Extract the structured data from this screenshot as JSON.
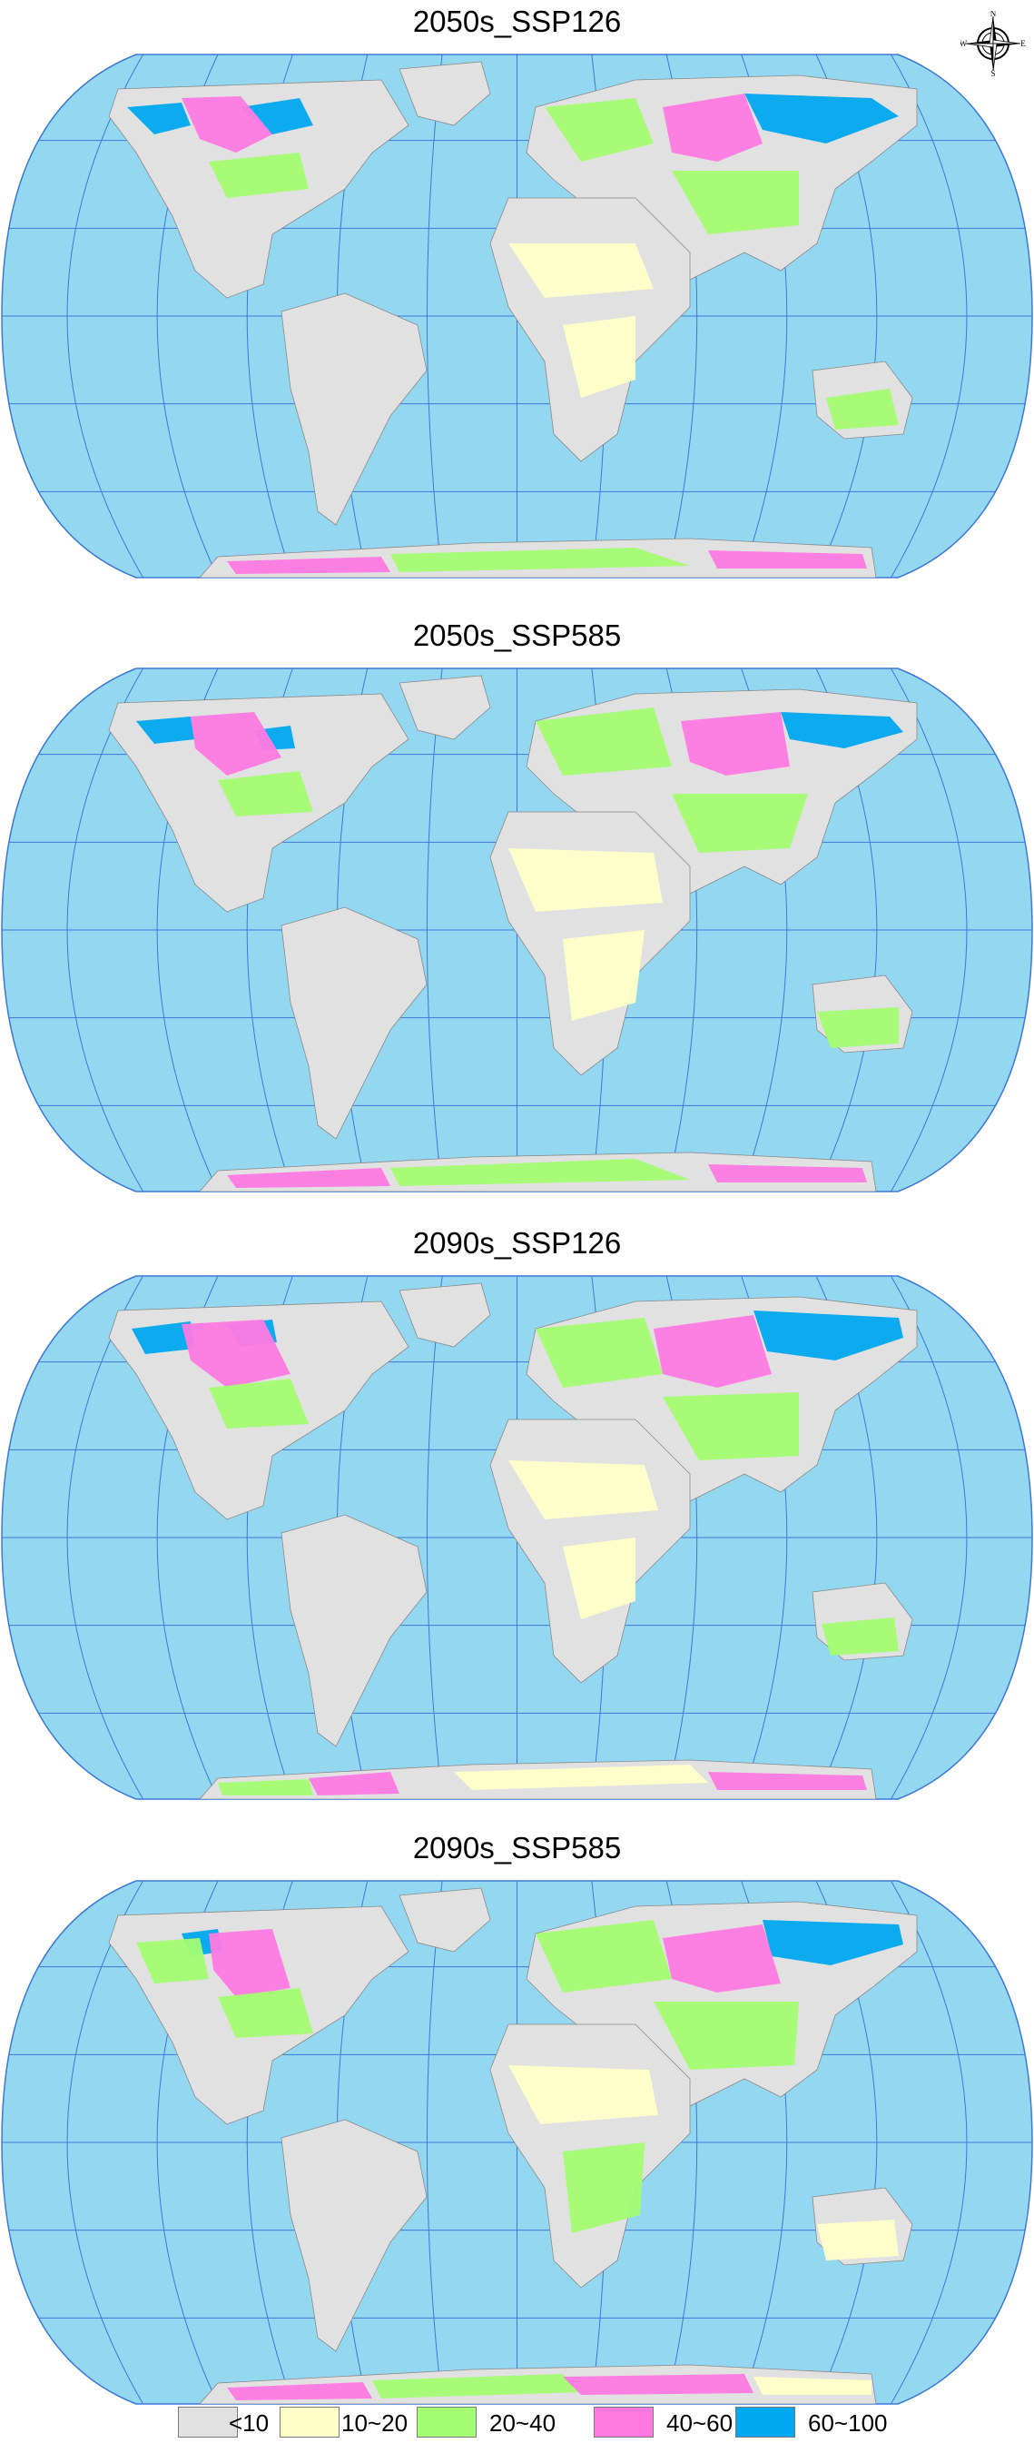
{
  "panels": [
    {
      "title": "2050s_SSP126"
    },
    {
      "title": "2050s_SSP585"
    },
    {
      "title": "2090s_SSP126"
    },
    {
      "title": "2090s_SSP585"
    }
  ],
  "compass": {
    "north": "N",
    "south": "S",
    "east": "E",
    "west": "W"
  },
  "legend": {
    "items": [
      {
        "label": "<10",
        "color": "#e1e1e1"
      },
      {
        "label": "10~20",
        "color": "#ffffc8"
      },
      {
        "label": "20~40",
        "color": "#a3fc71"
      },
      {
        "label": "40~60",
        "color": "#ff79e1"
      },
      {
        "label": "60~100",
        "color": "#00a8ef"
      }
    ]
  },
  "colors": {
    "ocean": "#93d7f1",
    "graticule": "#3d78d8",
    "land_base": "#e1e1e1",
    "low": "#ffffc8",
    "mid": "#a3fc71",
    "high": "#ff79e1",
    "top": "#00a8ef"
  }
}
